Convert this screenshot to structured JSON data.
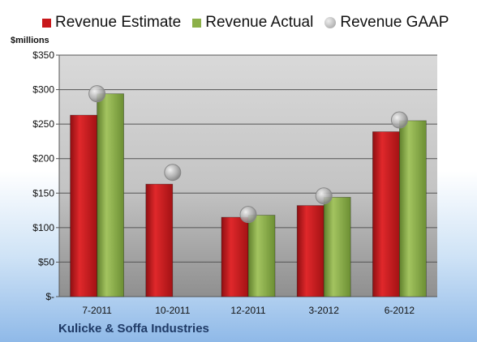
{
  "chart_data": {
    "type": "bar",
    "categories": [
      "7-2011",
      "10-2011",
      "12-2011",
      "3-2012",
      "6-2012"
    ],
    "series": [
      {
        "name": "Revenue Estimate",
        "kind": "bar",
        "color": "#c8181b",
        "values": [
          263,
          163,
          115,
          132,
          239
        ]
      },
      {
        "name": "Revenue Actual",
        "kind": "bar",
        "color": "#8cb049",
        "values": [
          294,
          null,
          118,
          144,
          255
        ]
      },
      {
        "name": "Revenue GAAP",
        "kind": "marker",
        "color": "#a8a8a8",
        "values": [
          294,
          180,
          119,
          146,
          256
        ]
      }
    ],
    "ylabel": "$millions",
    "ylim": [
      0,
      350
    ],
    "yticks": [
      0,
      50,
      100,
      150,
      200,
      250,
      300,
      350
    ],
    "ytick_labels": [
      "$-",
      "$50",
      "$100",
      "$150",
      "$200",
      "$250",
      "$300",
      "$350"
    ],
    "grid": true,
    "legend_position": "top",
    "footer": "Kulicke & Soffa Industries"
  }
}
